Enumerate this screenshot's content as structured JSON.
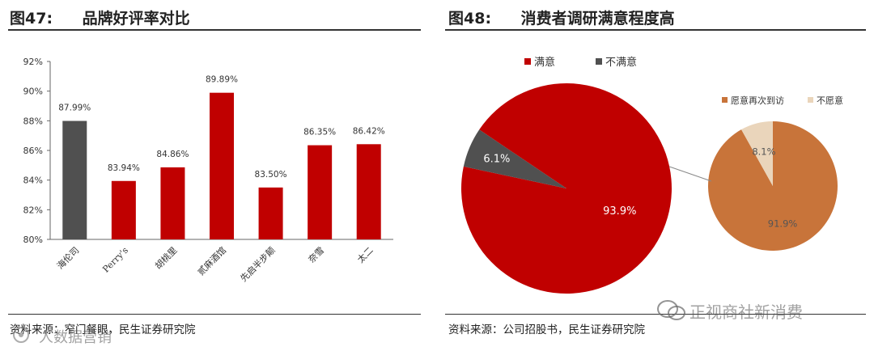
{
  "left_figure": {
    "label": "图47:",
    "title": "品牌好评率对比",
    "source": "资料来源：窄门餐眼，民生证券研究院"
  },
  "right_figure": {
    "label": "图48:",
    "title": "消费者调研满意程度高",
    "source": "资料来源：公司招股书，民生证券研究院"
  },
  "watermarks": {
    "bottom_left": "人数据营销",
    "bottom_right": "正视商社新消费"
  },
  "colors": {
    "red": "#c00000",
    "gray": "#505050",
    "orange": "#c8743a",
    "beige": "#ead5bb"
  },
  "chart_data": [
    {
      "type": "bar",
      "categories": [
        "海伦司",
        "Perry's",
        "胡桃里",
        "贰麻酒馆",
        "先启半步颠",
        "奈雪",
        "太二"
      ],
      "values": [
        87.99,
        83.94,
        84.86,
        89.89,
        83.5,
        86.35,
        86.42
      ],
      "data_labels": [
        "87.99%",
        "83.94%",
        "84.86%",
        "89.89%",
        "83.50%",
        "86.35%",
        "86.42%"
      ],
      "bar_colors": [
        "#505050",
        "#c00000",
        "#c00000",
        "#c00000",
        "#c00000",
        "#c00000",
        "#c00000"
      ],
      "ylim": [
        80,
        92
      ],
      "yticks": [
        80,
        82,
        84,
        86,
        88,
        90,
        92
      ],
      "ytick_labels": [
        "80%",
        "82%",
        "84%",
        "86%",
        "88%",
        "90%",
        "92%"
      ],
      "grid": false
    },
    {
      "type": "pie",
      "labels": [
        "满意",
        "不满意"
      ],
      "values": [
        93.9,
        6.1
      ],
      "data_labels": [
        "93.9%",
        "6.1%"
      ],
      "colors": [
        "#c00000",
        "#505050"
      ],
      "legend": "top"
    },
    {
      "type": "pie",
      "labels": [
        "愿意再次到访",
        "不愿意"
      ],
      "values": [
        91.9,
        8.1
      ],
      "data_labels": [
        "91.9%",
        "8.1%"
      ],
      "colors": [
        "#c8743a",
        "#ead5bb"
      ],
      "legend": "top"
    }
  ]
}
